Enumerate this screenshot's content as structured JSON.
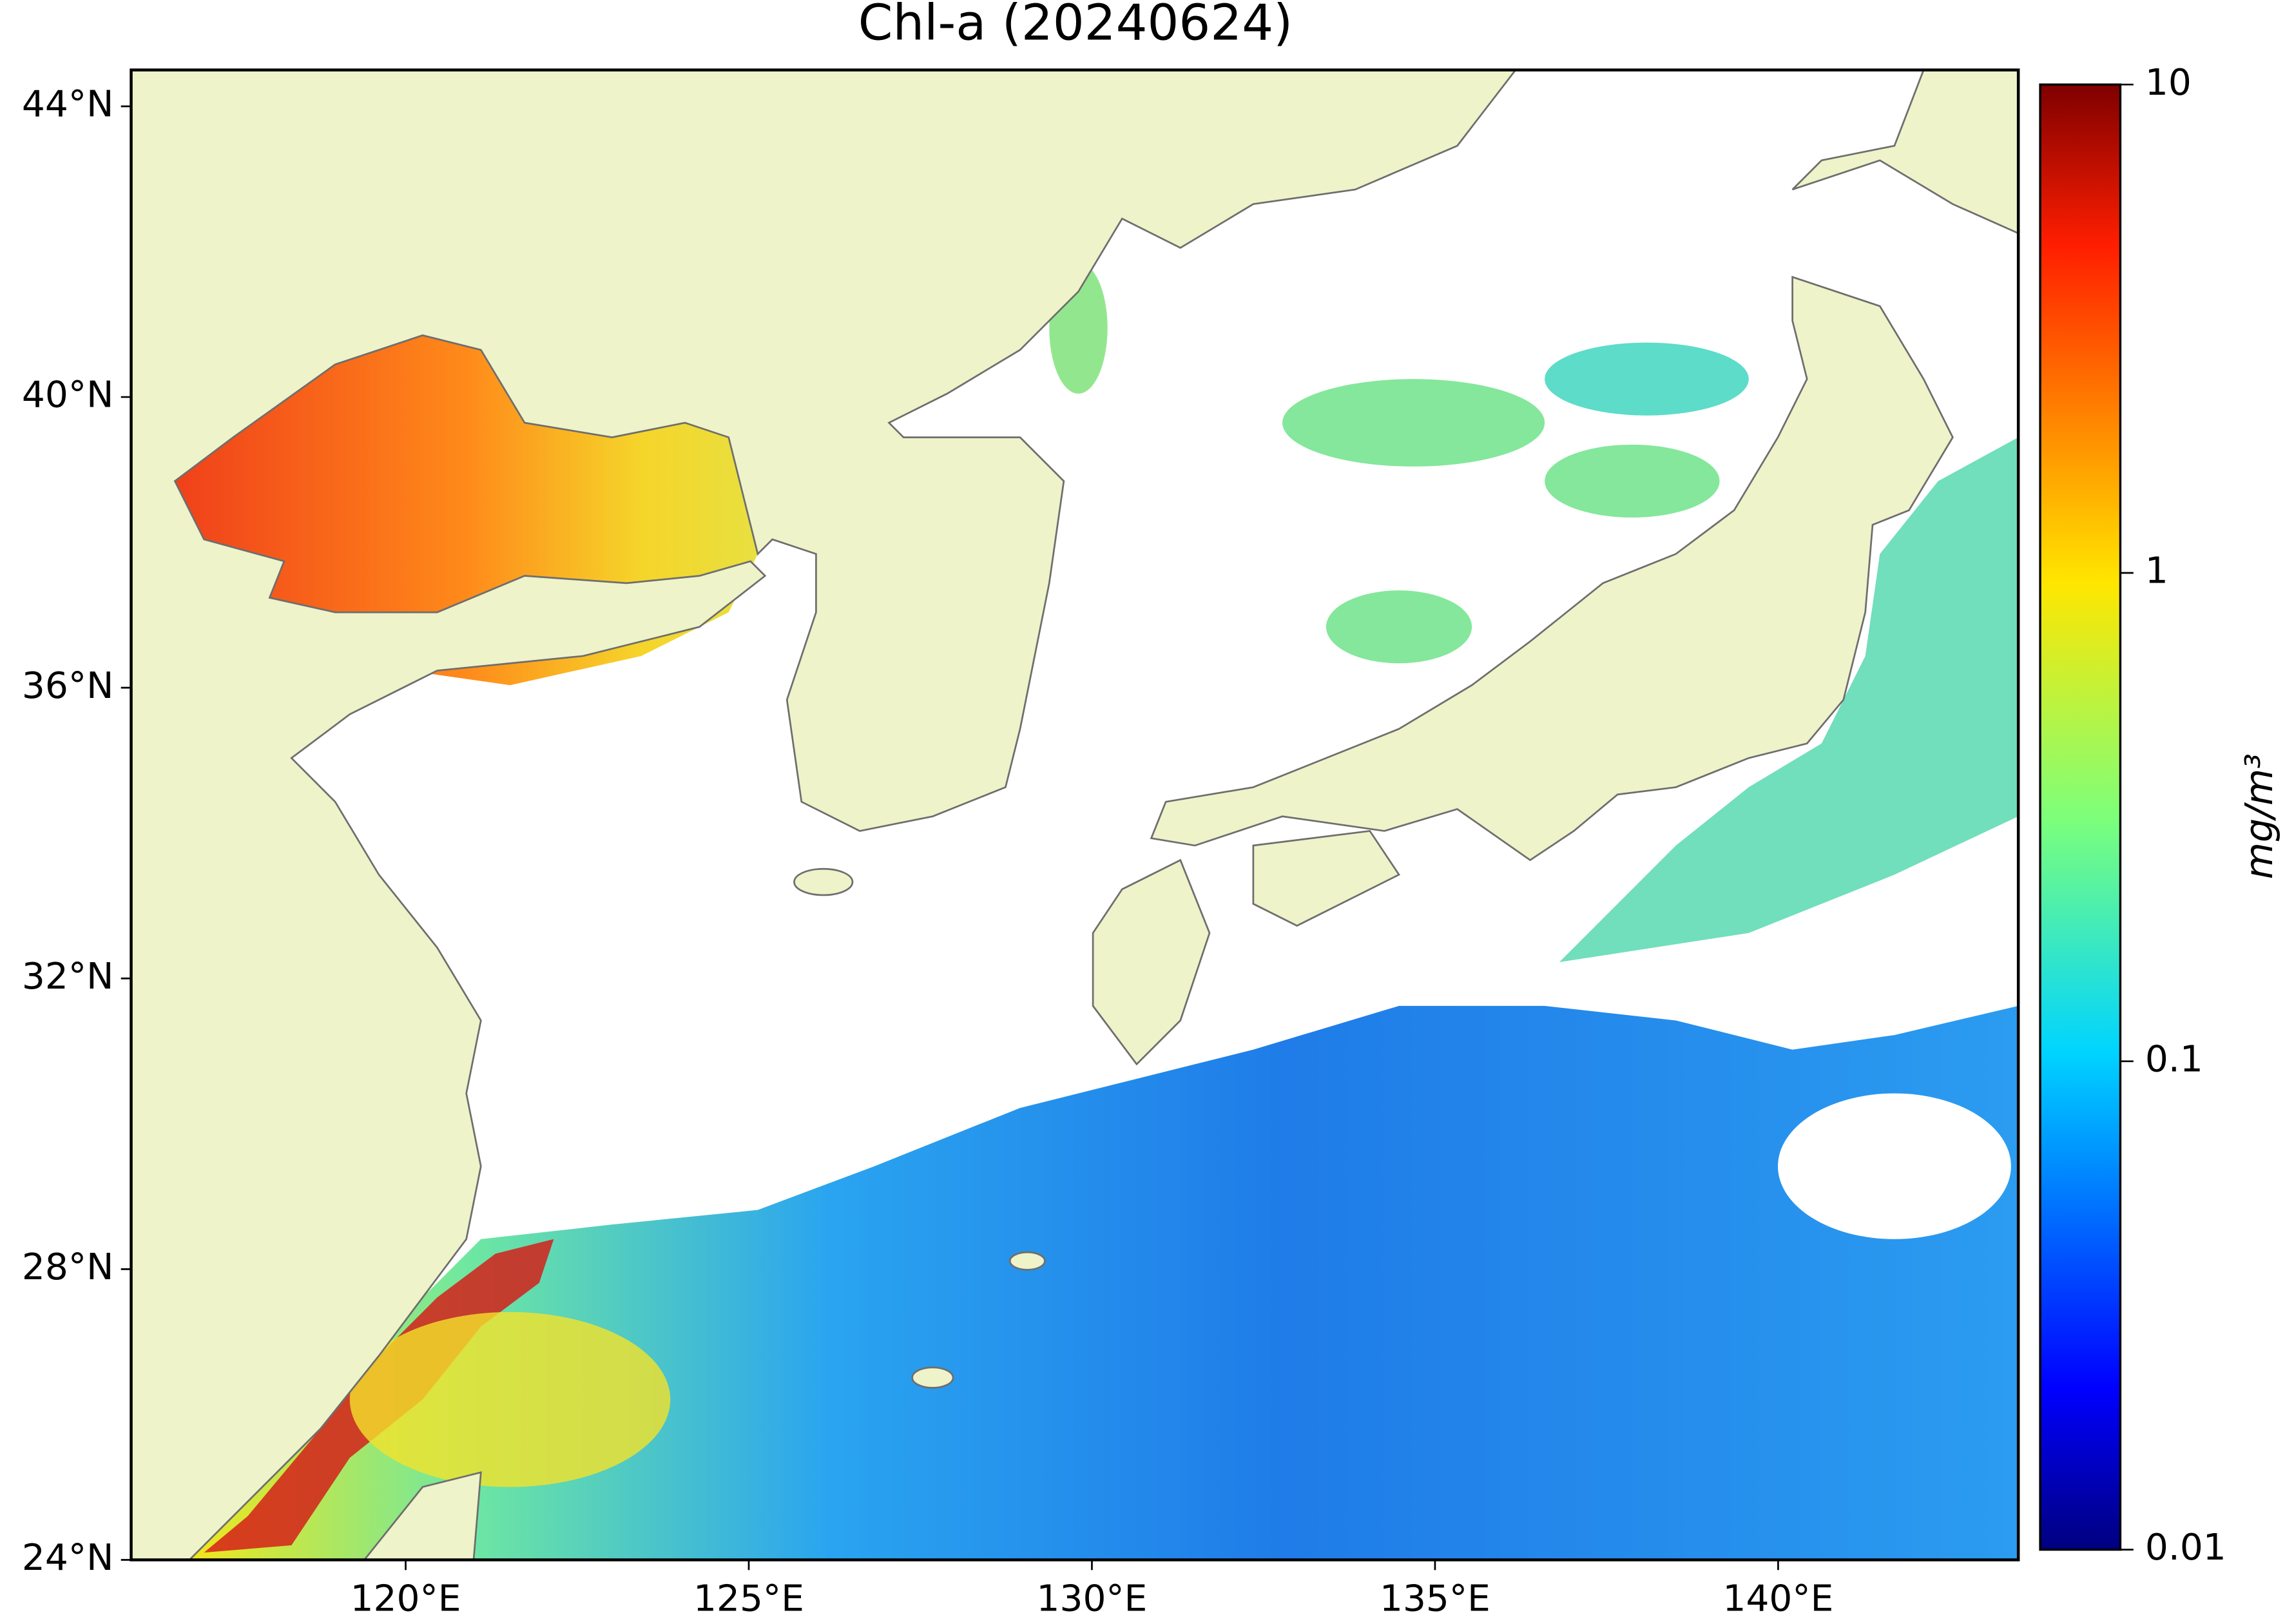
{
  "chart_data": {
    "type": "map",
    "title": "Chl-a (20240624)",
    "xlim": [
      116,
      143.5
    ],
    "ylim": [
      24,
      44.5
    ],
    "xticks": [
      {
        "value": 120,
        "label": "120°E"
      },
      {
        "value": 125,
        "label": "125°E"
      },
      {
        "value": 130,
        "label": "130°E"
      },
      {
        "value": 135,
        "label": "135°E"
      },
      {
        "value": 140,
        "label": "140°E"
      }
    ],
    "yticks": [
      {
        "value": 24,
        "label": "24°N"
      },
      {
        "value": 28,
        "label": "28°N"
      },
      {
        "value": 32,
        "label": "32°N"
      },
      {
        "value": 36,
        "label": "36°N"
      },
      {
        "value": 40,
        "label": "40°N"
      },
      {
        "value": 44,
        "label": "44°N"
      }
    ],
    "colorbar": {
      "label": "mg/m³",
      "lim": [
        0.01,
        10
      ],
      "ticks": [
        0.01,
        0.1,
        1,
        10
      ],
      "log": true
    }
  }
}
